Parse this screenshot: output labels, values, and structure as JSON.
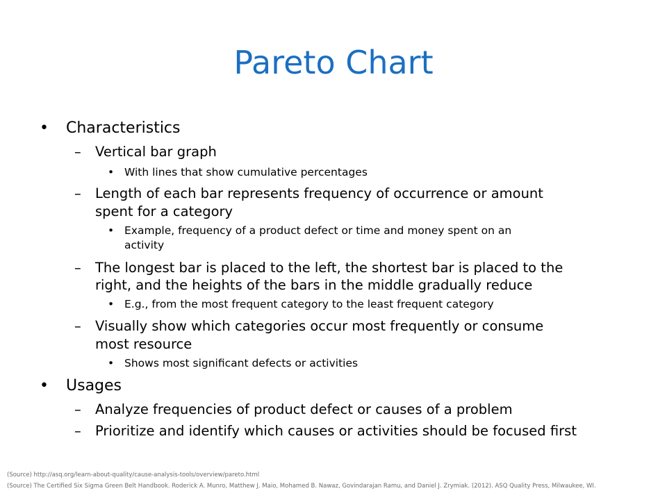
{
  "slide": {
    "title": "Pareto Chart",
    "title_color": "#1b6fc2",
    "bullets": {
      "characteristics": "Characteristics",
      "vertical_bar_graph": "Vertical bar graph",
      "with_lines": "With lines that show cumulative percentages",
      "length_line1": "Length of each bar represents frequency of occurrence or amount",
      "length_line2": "spent for a category",
      "example_line1": "Example, frequency of a product defect or time and money spent on an",
      "example_line2": "activity",
      "longest_line1": "The longest bar is placed to the left, the shortest bar is placed to the",
      "longest_line2": "right, and the heights of the bars in the middle gradually reduce",
      "eg": "E.g., from the most frequent category to the least frequent category",
      "visually_line1": "Visually show which categories occur most frequently or consume",
      "visually_line2": "most resource",
      "shows": "Shows most significant defects or activities",
      "usages": "Usages",
      "analyze": "Analyze frequencies of product defect or causes of a problem",
      "prioritize": "Prioritize and identify which causes or activities should be focused first"
    },
    "markers": {
      "bullet": "•",
      "dash": "–"
    },
    "sources": [
      "(Source) http://asq.org/learn-about-quality/cause-analysis-tools/overview/pareto.html",
      "(Source) The Certified Six Sigma Green Belt Handbook. Roderick A. Munro, Matthew J. Maio, Mohamed B. Nawaz, Govindarajan Ramu, and Daniel J. Zrymiak. (2012). ASQ Quality Press, Milwaukee, WI."
    ]
  }
}
